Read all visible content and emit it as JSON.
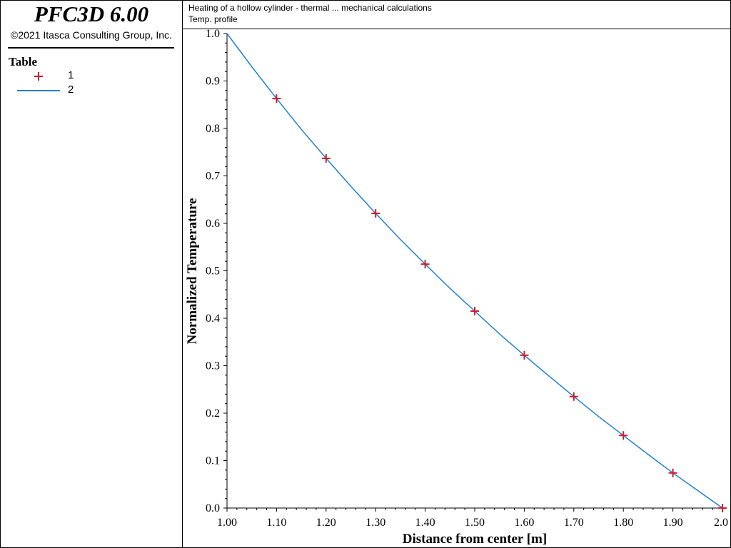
{
  "app": {
    "title": "PFC3D 6.00",
    "copyright": "©2021 Itasca Consulting Group, Inc."
  },
  "header": {
    "line1": "Heating of a hollow cylinder - thermal ... mechanical calculations",
    "line2": "Temp. profile"
  },
  "legend": {
    "title": "Table",
    "items": [
      {
        "label": "1",
        "marker": "cross",
        "color": "#cc1f2b"
      },
      {
        "label": "2",
        "marker": "line",
        "color": "#1f7fd6"
      }
    ]
  },
  "chart_data": {
    "type": "line",
    "xlabel": "Distance from center [m]",
    "ylabel": "Normalized Temperature",
    "xlim": [
      1.0,
      2.0
    ],
    "ylim": [
      0.0,
      1.0
    ],
    "xticks": [
      "1.00",
      "1.10",
      "1.20",
      "1.30",
      "1.40",
      "1.50",
      "1.60",
      "1.70",
      "1.80",
      "1.90",
      "2.0"
    ],
    "yticks": [
      "0.0",
      "0.1",
      "0.2",
      "0.3",
      "0.4",
      "0.5",
      "0.6",
      "0.7",
      "0.8",
      "0.9",
      "1.0"
    ],
    "series": [
      {
        "name": "1",
        "style": "markers",
        "color": "#cc1f2b",
        "x": [
          1.1,
          1.2,
          1.3,
          1.4,
          1.5,
          1.6,
          1.7,
          1.8,
          1.9,
          2.0
        ],
        "y": [
          0.863,
          0.737,
          0.621,
          0.514,
          0.415,
          0.322,
          0.235,
          0.153,
          0.074,
          0.0
        ]
      },
      {
        "name": "2",
        "style": "line",
        "color": "#1f7fd6",
        "x": [
          1.0,
          1.05,
          1.1,
          1.15,
          1.2,
          1.25,
          1.3,
          1.35,
          1.4,
          1.45,
          1.5,
          1.55,
          1.6,
          1.65,
          1.7,
          1.75,
          1.8,
          1.85,
          1.9,
          1.95,
          2.0
        ],
        "y": [
          1.0,
          0.93,
          0.863,
          0.798,
          0.737,
          0.678,
          0.621,
          0.566,
          0.514,
          0.463,
          0.415,
          0.367,
          0.322,
          0.278,
          0.235,
          0.193,
          0.153,
          0.113,
          0.074,
          0.037,
          0.0
        ]
      }
    ]
  }
}
